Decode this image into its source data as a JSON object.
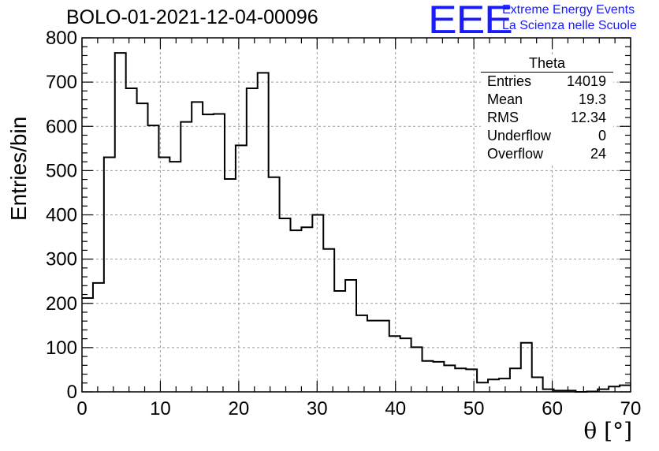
{
  "title": "BOLO-01-2021-12-04-00096",
  "logo": {
    "mark": "EEE",
    "line1": "Extreme Energy Events",
    "line2": "La Scienza nelle Scuole",
    "color": "#1a1aff"
  },
  "stats_box": {
    "name": "Theta",
    "rows": [
      {
        "label": "Entries",
        "value": "14019"
      },
      {
        "label": "Mean",
        "value": "19.3"
      },
      {
        "label": "RMS",
        "value": "12.34"
      },
      {
        "label": "Underflow",
        "value": "0"
      },
      {
        "label": "Overflow",
        "value": "24"
      }
    ]
  },
  "chart_data": {
    "type": "bar",
    "title": "BOLO-01-2021-12-04-00096",
    "xlabel": "θ [°]",
    "ylabel": "Entries/bin",
    "xlim": [
      0,
      70
    ],
    "ylim": [
      0,
      800
    ],
    "bin_width": 1.4,
    "x_ticks": [
      0,
      10,
      20,
      30,
      40,
      50,
      60,
      70
    ],
    "y_ticks": [
      0,
      100,
      200,
      300,
      400,
      500,
      600,
      700,
      800
    ],
    "grid": true,
    "values": [
      212,
      246,
      530,
      766,
      686,
      652,
      602,
      530,
      520,
      610,
      655,
      627,
      628,
      481,
      557,
      686,
      721,
      485,
      392,
      365,
      372,
      400,
      323,
      228,
      253,
      173,
      161,
      161,
      126,
      121,
      101,
      70,
      68,
      60,
      53,
      51,
      21,
      28,
      30,
      53,
      111,
      33,
      6,
      3,
      3,
      0,
      1,
      6,
      12,
      15
    ],
    "line_color": "#000000",
    "grid_color": "#9a9a9a"
  }
}
